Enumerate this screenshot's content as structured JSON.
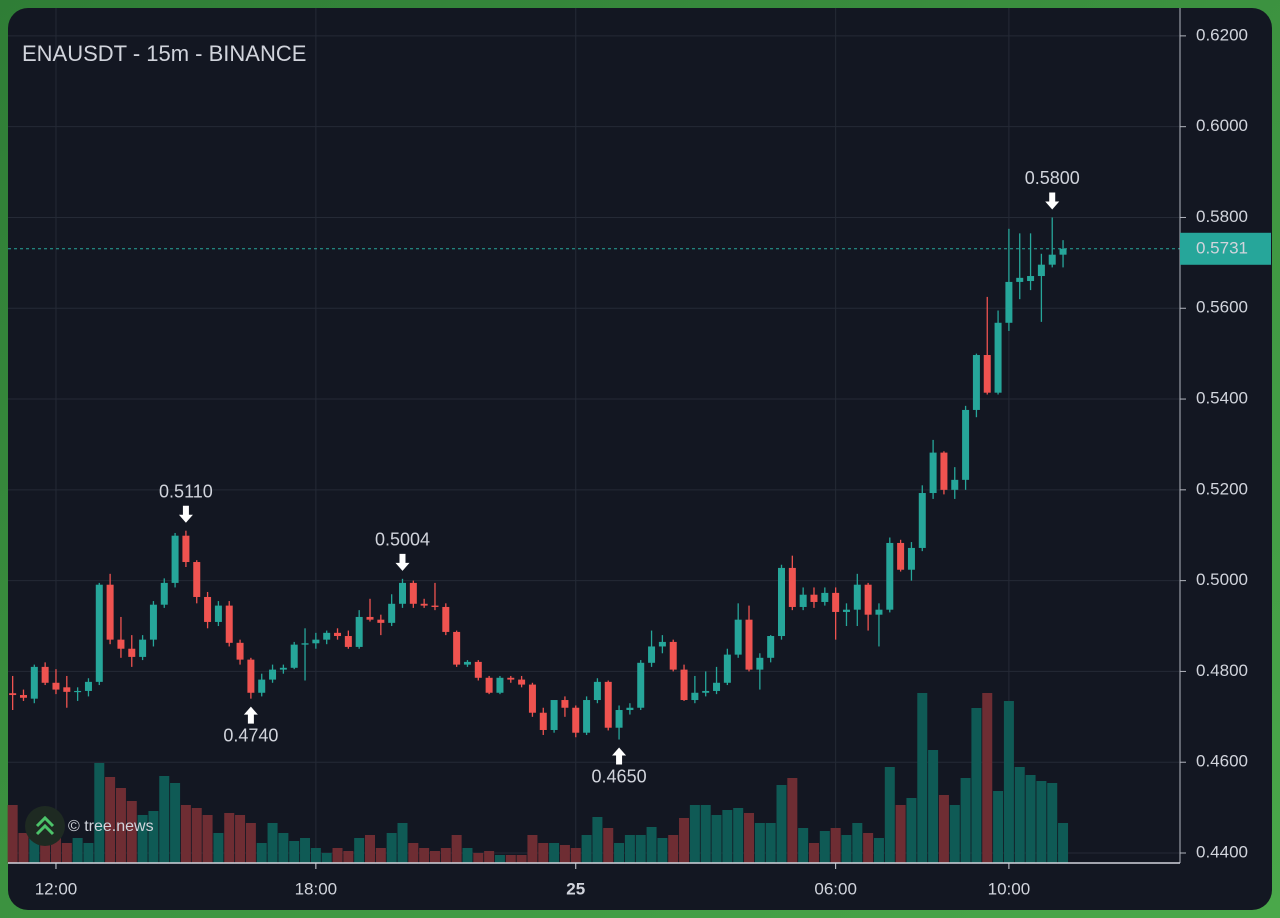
{
  "chart_data": {
    "type": "candlestick",
    "title": "ENAUSDT - 15m - BINANCE",
    "watermark": "© tree.news",
    "up_color": "#26a69a",
    "down_color": "#ef5350",
    "volume_up_color": "#0f5a55",
    "volume_down_color": "#6e2d33",
    "open": [
      0.4752,
      0.4748,
      0.474,
      0.481,
      0.4775,
      0.4765,
      0.4755,
      0.4757,
      0.4777,
      0.4991,
      0.487,
      0.485,
      0.4832,
      0.487,
      0.4947,
      0.4995,
      0.5099,
      0.5041,
      0.4964,
      0.4909,
      0.4945,
      0.4863,
      0.4826,
      0.4753,
      0.4782,
      0.4804,
      0.4808,
      0.4859,
      0.4862,
      0.487,
      0.4885,
      0.4878,
      0.4854,
      0.492,
      0.4914,
      0.4907,
      0.4949,
      0.4995,
      0.4949,
      0.4945,
      0.4942,
      0.4887,
      0.4815,
      0.4821,
      0.4786,
      0.4753,
      0.4786,
      0.4782,
      0.4771,
      0.4709,
      0.4671,
      0.4737,
      0.472,
      0.4665,
      0.4737,
      0.4777,
      0.4676,
      0.4715,
      0.472,
      0.4819,
      0.4855,
      0.4865,
      0.4804,
      0.4737,
      0.4753,
      0.4757,
      0.4775,
      0.4837,
      0.4914,
      0.4804,
      0.483,
      0.4878,
      0.5028,
      0.4942,
      0.4969,
      0.4953,
      0.4973,
      0.4931,
      0.4936,
      0.4991,
      0.4925,
      0.4936,
      0.5083,
      0.5024,
      0.5072,
      0.5193,
      0.5282,
      0.52,
      0.5222,
      0.5376,
      0.5497,
      0.5414,
      0.5568,
      0.5658,
      0.566,
      0.5671,
      0.5696,
      0.5718
    ],
    "high": [
      0.479,
      0.476,
      0.4815,
      0.482,
      0.4805,
      0.479,
      0.4765,
      0.4785,
      0.4995,
      0.5015,
      0.492,
      0.488,
      0.488,
      0.4955,
      0.5005,
      0.5105,
      0.511,
      0.5045,
      0.4975,
      0.4955,
      0.4955,
      0.487,
      0.483,
      0.4795,
      0.4815,
      0.4815,
      0.4865,
      0.4895,
      0.4885,
      0.489,
      0.4895,
      0.489,
      0.4935,
      0.496,
      0.4925,
      0.497,
      0.5004,
      0.5,
      0.496,
      0.4995,
      0.495,
      0.489,
      0.4825,
      0.4825,
      0.479,
      0.479,
      0.479,
      0.479,
      0.4775,
      0.472,
      0.473,
      0.4745,
      0.4725,
      0.4745,
      0.4785,
      0.478,
      0.4725,
      0.473,
      0.4825,
      0.489,
      0.488,
      0.487,
      0.4815,
      0.479,
      0.48,
      0.481,
      0.485,
      0.495,
      0.4945,
      0.484,
      0.488,
      0.5035,
      0.5055,
      0.4985,
      0.4985,
      0.4985,
      0.4985,
      0.495,
      0.5015,
      0.4995,
      0.495,
      0.5095,
      0.509,
      0.5085,
      0.521,
      0.531,
      0.5285,
      0.525,
      0.5385,
      0.55,
      0.5625,
      0.5595,
      0.5775,
      0.5765,
      0.5765,
      0.572,
      0.58,
      0.575
    ],
    "low": [
      0.4715,
      0.4735,
      0.473,
      0.477,
      0.475,
      0.472,
      0.4735,
      0.4745,
      0.477,
      0.486,
      0.483,
      0.481,
      0.4825,
      0.4855,
      0.494,
      0.4985,
      0.503,
      0.495,
      0.4895,
      0.49,
      0.4855,
      0.4815,
      0.474,
      0.4745,
      0.4775,
      0.4795,
      0.4805,
      0.478,
      0.485,
      0.486,
      0.487,
      0.485,
      0.485,
      0.491,
      0.488,
      0.49,
      0.494,
      0.494,
      0.494,
      0.4935,
      0.488,
      0.481,
      0.481,
      0.478,
      0.475,
      0.475,
      0.4775,
      0.4765,
      0.47,
      0.466,
      0.4665,
      0.47,
      0.4655,
      0.466,
      0.473,
      0.467,
      0.465,
      0.4705,
      0.4715,
      0.481,
      0.484,
      0.48,
      0.4735,
      0.473,
      0.4745,
      0.475,
      0.477,
      0.483,
      0.48,
      0.476,
      0.482,
      0.487,
      0.4935,
      0.4935,
      0.494,
      0.4945,
      0.487,
      0.49,
      0.49,
      0.489,
      0.4855,
      0.493,
      0.502,
      0.5,
      0.5065,
      0.518,
      0.519,
      0.518,
      0.52,
      0.536,
      0.541,
      0.541,
      0.555,
      0.562,
      0.564,
      0.557,
      0.569,
      0.569
    ],
    "close": [
      0.4748,
      0.4742,
      0.481,
      0.4775,
      0.476,
      0.4755,
      0.4757,
      0.4777,
      0.4991,
      0.487,
      0.485,
      0.4832,
      0.487,
      0.4947,
      0.4995,
      0.5099,
      0.5041,
      0.4964,
      0.4909,
      0.4945,
      0.4863,
      0.4826,
      0.4753,
      0.4782,
      0.4804,
      0.4808,
      0.4859,
      0.4862,
      0.487,
      0.4885,
      0.4878,
      0.4854,
      0.492,
      0.4914,
      0.4907,
      0.4949,
      0.4995,
      0.4949,
      0.4945,
      0.4942,
      0.4887,
      0.4815,
      0.4821,
      0.4786,
      0.4753,
      0.4786,
      0.4782,
      0.4771,
      0.4709,
      0.4671,
      0.4737,
      0.472,
      0.4665,
      0.4737,
      0.4777,
      0.4676,
      0.4715,
      0.472,
      0.4819,
      0.4855,
      0.4865,
      0.4804,
      0.4737,
      0.4753,
      0.4757,
      0.4775,
      0.4837,
      0.4914,
      0.4804,
      0.483,
      0.4878,
      0.5028,
      0.4942,
      0.4969,
      0.4953,
      0.4973,
      0.4931,
      0.4936,
      0.4991,
      0.4925,
      0.4936,
      0.5083,
      0.5024,
      0.5072,
      0.5193,
      0.5282,
      0.52,
      0.5222,
      0.5376,
      0.5497,
      0.5414,
      0.5568,
      0.5658,
      0.5667,
      0.5671,
      0.5696,
      0.5718,
      0.5731
    ],
    "volume": [
      58,
      30,
      35,
      25,
      25,
      20,
      25,
      20,
      100,
      86,
      75,
      62,
      48,
      52,
      87,
      80,
      58,
      55,
      48,
      30,
      50,
      48,
      40,
      20,
      40,
      30,
      22,
      25,
      15,
      10,
      15,
      12,
      25,
      28,
      15,
      30,
      40,
      20,
      15,
      12,
      15,
      28,
      15,
      10,
      12,
      8,
      8,
      8,
      28,
      20,
      20,
      18,
      15,
      28,
      46,
      35,
      20,
      28,
      28,
      36,
      25,
      28,
      45,
      58,
      58,
      48,
      53,
      55,
      50,
      40,
      40,
      78,
      85,
      35,
      20,
      32,
      35,
      28,
      40,
      30,
      25,
      96,
      58,
      65,
      170,
      113,
      68,
      58,
      85,
      155,
      170,
      72,
      162,
      96,
      88,
      82,
      80,
      40
    ],
    "y2lim": [
      0,
      200
    ],
    "xlim": [
      -0.43,
      107.8
    ],
    "xticks": [
      {
        "value": 4,
        "label": "12:00"
      },
      {
        "value": 28,
        "label": "18:00"
      },
      {
        "value": 52,
        "label": "25"
      },
      {
        "value": 76,
        "label": "06:00"
      },
      {
        "value": 92,
        "label": "10:00"
      }
    ],
    "ylim": [
      0.4378,
      0.6257
    ],
    "yticks": [
      {
        "value": 0.44,
        "label": "0.4400"
      },
      {
        "value": 0.46,
        "label": "0.4600"
      },
      {
        "value": 0.48,
        "label": "0.4800"
      },
      {
        "value": 0.5,
        "label": "0.5000"
      },
      {
        "value": 0.52,
        "label": "0.5200"
      },
      {
        "value": 0.54,
        "label": "0.5400"
      },
      {
        "value": 0.56,
        "label": "0.5600"
      },
      {
        "value": 0.58,
        "label": "0.5800"
      },
      {
        "value": 0.6,
        "label": "0.6000"
      },
      {
        "value": 0.62,
        "label": "0.6200"
      }
    ],
    "grid": true,
    "last_price": {
      "value": 0.5731,
      "label": "0.5731"
    },
    "annotations": [
      {
        "index": 16,
        "value": 0.511,
        "label": "0.5110"
      },
      {
        "index": 22,
        "value": 0.474,
        "label": "0.4740"
      },
      {
        "index": 36,
        "value": 0.5004,
        "label": "0.5004"
      },
      {
        "index": 56,
        "value": 0.465,
        "label": "0.4650"
      },
      {
        "index": 96,
        "value": 0.58,
        "label": "0.5800"
      }
    ]
  }
}
